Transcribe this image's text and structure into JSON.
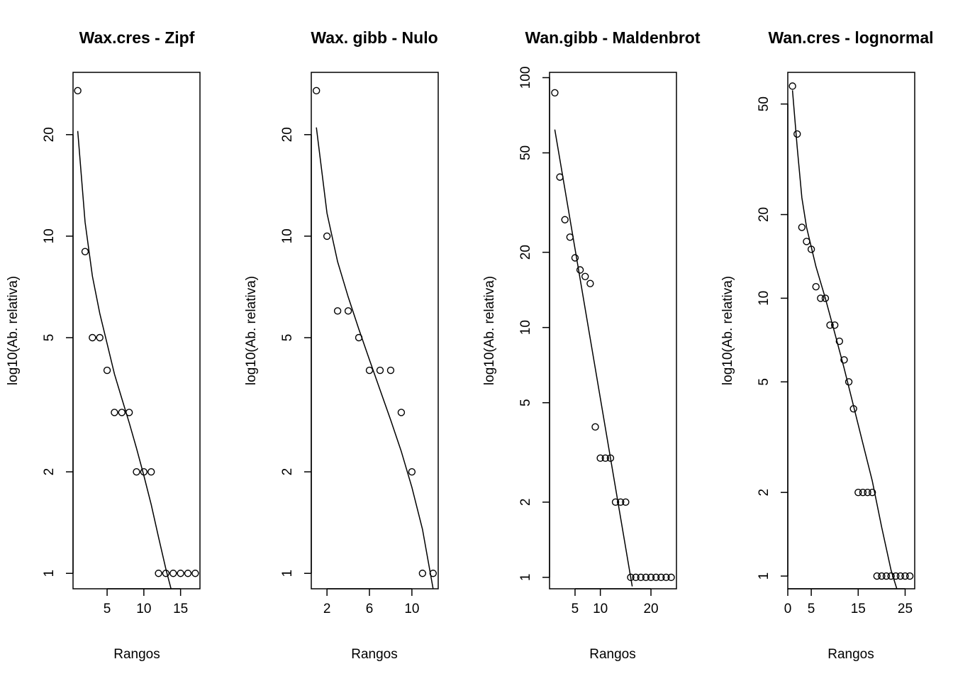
{
  "chart_data": [
    {
      "type": "scatter",
      "title": "Wax.cres - Zipf",
      "xlabel": "Rangos",
      "ylabel": "log10(Ab. relativa)",
      "y_scale": "log",
      "xlim": [
        0.36,
        17.64
      ],
      "ylim": [
        0.9,
        30.6
      ],
      "x_ticks": [
        5,
        10,
        15
      ],
      "y_ticks": [
        1,
        2,
        5,
        10,
        20
      ],
      "points": {
        "x": [
          1,
          2,
          3,
          4,
          5,
          6,
          7,
          8,
          9,
          10,
          11,
          12,
          13,
          14,
          15,
          16,
          17
        ],
        "y": [
          27,
          9,
          5,
          5,
          4,
          3,
          3,
          3,
          2,
          2,
          2,
          1,
          1,
          1,
          1,
          1,
          1
        ]
      },
      "fit_line": {
        "name": "Zipf",
        "x": [
          1,
          2,
          3,
          4,
          5,
          6,
          7,
          8,
          9,
          10,
          11,
          12,
          13,
          14
        ],
        "y": [
          20.5,
          11,
          7.6,
          5.9,
          4.8,
          3.9,
          3.3,
          2.8,
          2.35,
          1.95,
          1.6,
          1.28,
          1.03,
          0.85
        ]
      }
    },
    {
      "type": "scatter",
      "title": "Wax. gibb - Nulo",
      "xlabel": "Rangos",
      "ylabel": "log10(Ab. relativa)",
      "y_scale": "log",
      "xlim": [
        0.52,
        12.48
      ],
      "ylim": [
        0.9,
        30.6
      ],
      "x_ticks": [
        2,
        6,
        10
      ],
      "y_ticks": [
        1,
        2,
        5,
        10,
        20
      ],
      "points": {
        "x": [
          1,
          2,
          3,
          4,
          5,
          6,
          7,
          8,
          9,
          10,
          11,
          12
        ],
        "y": [
          27,
          10,
          6,
          6,
          5,
          4,
          4,
          4,
          3,
          2,
          1,
          1
        ]
      },
      "fit_line": {
        "name": "Nulo",
        "x": [
          1,
          2,
          3,
          4,
          5,
          6,
          7,
          8,
          9,
          10,
          11,
          12
        ],
        "y": [
          21,
          11.7,
          8.4,
          6.6,
          5.3,
          4.3,
          3.5,
          2.85,
          2.3,
          1.8,
          1.35,
          0.9
        ]
      }
    },
    {
      "type": "scatter",
      "title": "Wan.gibb - Maldenbrot",
      "xlabel": "Rangos",
      "ylabel": "log10(Ab. relativa)",
      "y_scale": "log",
      "xlim": [
        -0.04,
        25.04
      ],
      "ylim": [
        0.9,
        105
      ],
      "x_ticks": [
        5,
        10,
        20
      ],
      "y_ticks": [
        1,
        2,
        5,
        10,
        20,
        50,
        100
      ],
      "points": {
        "x": [
          1,
          2,
          3,
          4,
          5,
          6,
          7,
          8,
          9,
          10,
          11,
          12,
          13,
          14,
          15,
          16,
          17,
          18,
          19,
          20,
          21,
          22,
          23,
          24
        ],
        "y": [
          87,
          40,
          27,
          23,
          19,
          17,
          16,
          15,
          4,
          3,
          3,
          3,
          2,
          2,
          2,
          1,
          1,
          1,
          1,
          1,
          1,
          1,
          1,
          1
        ]
      },
      "fit_line": {
        "name": "Maldenbrot",
        "x": [
          1,
          16.3
        ],
        "y": [
          62,
          0.92
        ]
      }
    },
    {
      "type": "scatter",
      "title": "Wan.cres - lognormal",
      "xlabel": "Rangos",
      "ylabel": "log10(Ab. relativa)",
      "y_scale": "log",
      "xlim": [
        0,
        27.04
      ],
      "ylim": [
        0.9,
        65
      ],
      "x_ticks": [
        0,
        5,
        15,
        25
      ],
      "y_ticks": [
        1,
        2,
        5,
        10,
        20,
        50
      ],
      "points": {
        "x": [
          1,
          2,
          3,
          4,
          5,
          6,
          7,
          8,
          9,
          10,
          11,
          12,
          13,
          14,
          15,
          16,
          17,
          18,
          19,
          20,
          21,
          22,
          23,
          24,
          25,
          26
        ],
        "y": [
          58,
          39,
          18,
          16,
          15,
          11,
          10,
          10,
          8,
          8,
          7,
          6,
          5,
          4,
          2,
          2,
          2,
          2,
          1,
          1,
          1,
          1,
          1,
          1,
          1,
          1
        ]
      },
      "fit_line": {
        "name": "lognormal",
        "x": [
          1,
          2,
          3,
          4,
          6,
          8,
          10,
          12,
          14,
          16,
          18,
          20,
          22,
          23.5
        ],
        "y": [
          56,
          35,
          23,
          18,
          13,
          10,
          7.5,
          5.6,
          4.1,
          3,
          2.2,
          1.5,
          1.05,
          0.87
        ]
      }
    }
  ]
}
